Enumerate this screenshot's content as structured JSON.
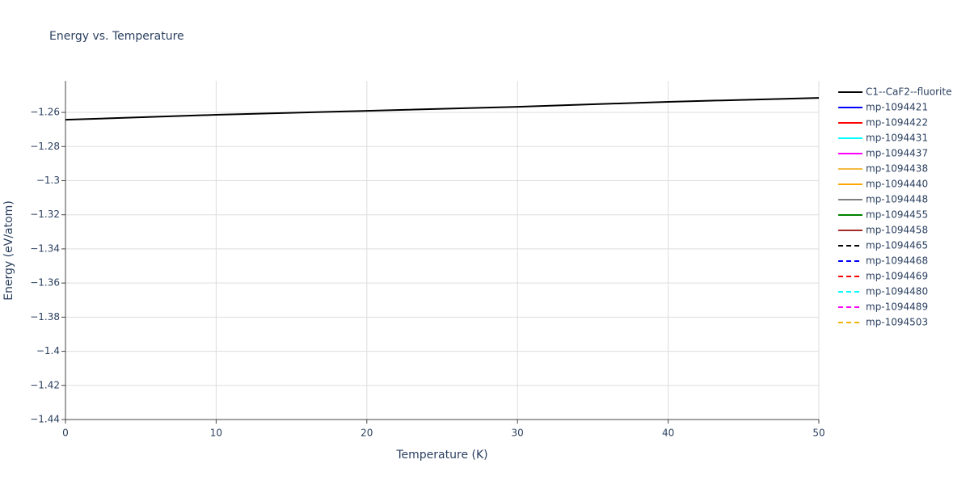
{
  "chart_data": {
    "type": "line",
    "title": "Energy vs. Temperature",
    "x_label": "Temperature (K)",
    "y_label": "Energy (eV/atom)",
    "x": [
      0,
      10,
      20,
      30,
      40,
      50
    ],
    "series": [
      {
        "name": "C1--CaF2--fluorite",
        "color": "#000000",
        "dash": false,
        "values": [
          -1.2643,
          -1.2614,
          -1.2591,
          -1.2567,
          -1.2538,
          -1.2515
        ]
      },
      {
        "name": "mp-1094421",
        "color": "#0000ff",
        "dash": false,
        "values": [
          null,
          null,
          null,
          null,
          null,
          null
        ]
      },
      {
        "name": "mp-1094422",
        "color": "#ff0000",
        "dash": false,
        "values": [
          null,
          null,
          null,
          null,
          null,
          null
        ]
      },
      {
        "name": "mp-1094431",
        "color": "#00ffff",
        "dash": false,
        "values": [
          null,
          null,
          null,
          null,
          null,
          null
        ]
      },
      {
        "name": "mp-1094437",
        "color": "#ff00ff",
        "dash": false,
        "values": [
          null,
          null,
          null,
          null,
          null,
          null
        ]
      },
      {
        "name": "mp-1094438",
        "color": "#f5b942",
        "dash": false,
        "values": [
          null,
          null,
          null,
          null,
          null,
          null
        ]
      },
      {
        "name": "mp-1094440",
        "color": "#ffa500",
        "dash": false,
        "values": [
          null,
          null,
          null,
          null,
          null,
          null
        ]
      },
      {
        "name": "mp-1094448",
        "color": "#808080",
        "dash": false,
        "values": [
          null,
          null,
          null,
          null,
          null,
          null
        ]
      },
      {
        "name": "mp-1094455",
        "color": "#008000",
        "dash": false,
        "values": [
          null,
          null,
          null,
          null,
          null,
          null
        ]
      },
      {
        "name": "mp-1094458",
        "color": "#a52a2a",
        "dash": false,
        "values": [
          null,
          null,
          null,
          null,
          null,
          null
        ]
      },
      {
        "name": "mp-1094465",
        "color": "#000000",
        "dash": true,
        "values": [
          null,
          null,
          null,
          null,
          null,
          null
        ]
      },
      {
        "name": "mp-1094468",
        "color": "#0000ff",
        "dash": true,
        "values": [
          null,
          null,
          null,
          null,
          null,
          null
        ]
      },
      {
        "name": "mp-1094469",
        "color": "#ff0000",
        "dash": true,
        "values": [
          null,
          null,
          null,
          null,
          null,
          null
        ]
      },
      {
        "name": "mp-1094480",
        "color": "#00ffff",
        "dash": true,
        "values": [
          null,
          null,
          null,
          null,
          null,
          null
        ]
      },
      {
        "name": "mp-1094489",
        "color": "#ff00ff",
        "dash": true,
        "values": [
          null,
          null,
          null,
          null,
          null,
          null
        ]
      },
      {
        "name": "mp-1094503",
        "color": "#f0b400",
        "dash": true,
        "values": [
          null,
          null,
          null,
          null,
          null,
          null
        ]
      }
    ],
    "xlim": [
      0,
      50
    ],
    "xticks": [
      0,
      10,
      20,
      30,
      40,
      50
    ],
    "ylim": [
      -1.44,
      -1.2415
    ],
    "yticks": [
      {
        "value": -1.44,
        "label": "−1.44"
      },
      {
        "value": -1.42,
        "label": "−1.42"
      },
      {
        "value": -1.4,
        "label": "−1.4"
      },
      {
        "value": -1.38,
        "label": "−1.38"
      },
      {
        "value": -1.36,
        "label": "−1.36"
      },
      {
        "value": -1.34,
        "label": "−1.34"
      },
      {
        "value": -1.32,
        "label": "−1.32"
      },
      {
        "value": -1.3,
        "label": "−1.3"
      },
      {
        "value": -1.28,
        "label": "−1.28"
      },
      {
        "value": -1.26,
        "label": "−1.26"
      }
    ],
    "grid": true,
    "legend": "right"
  }
}
